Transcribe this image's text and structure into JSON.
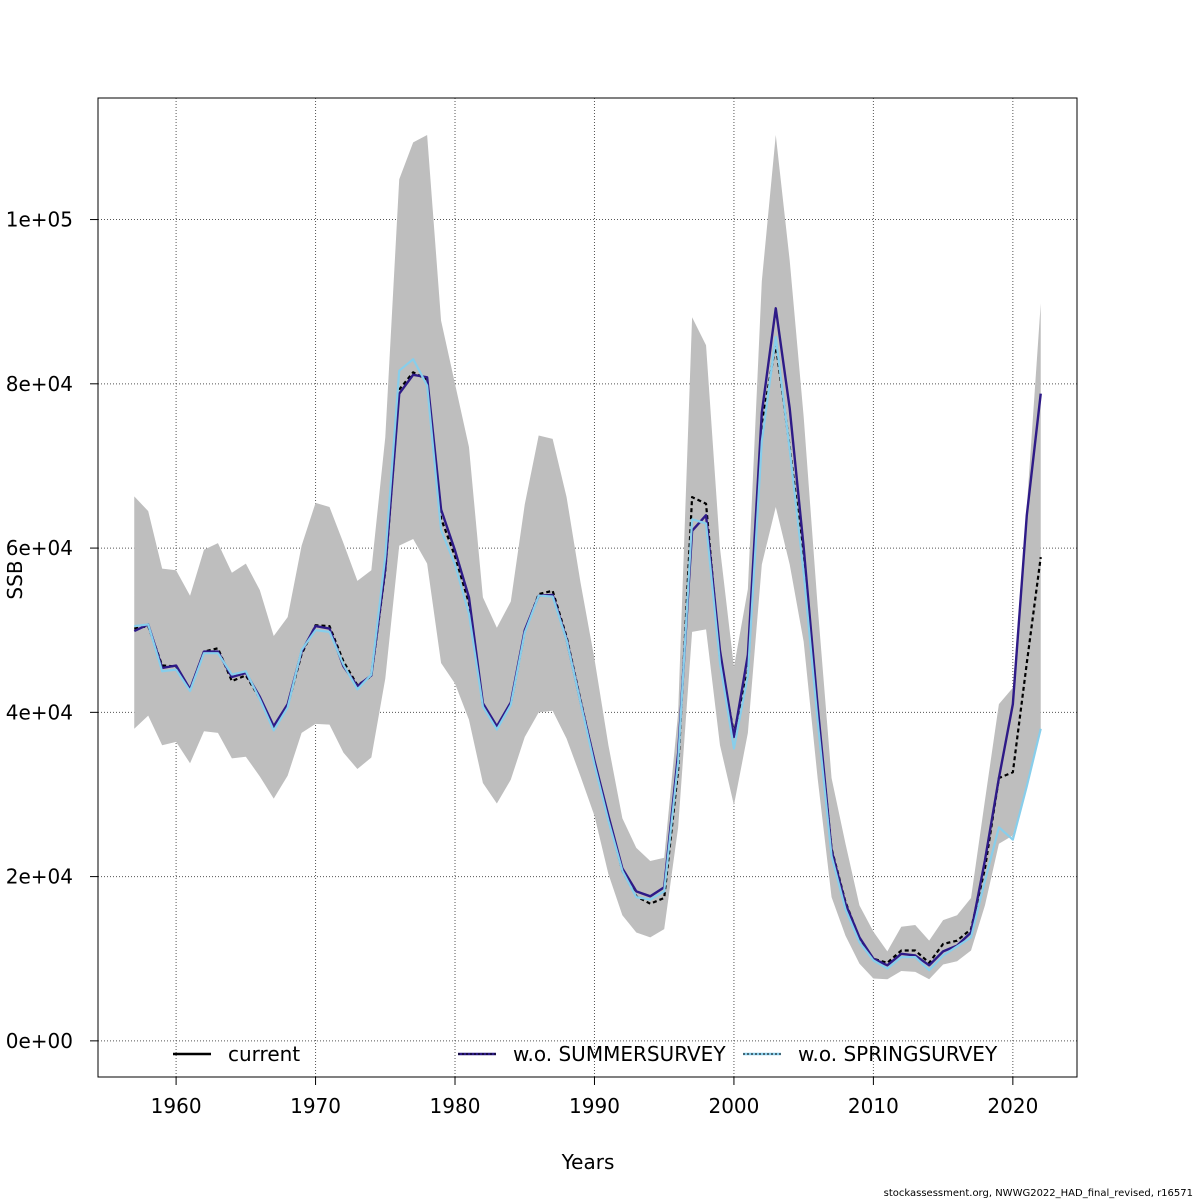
{
  "chart_data": {
    "type": "line",
    "xlabel": "Years",
    "ylabel": "SSB",
    "xlim": [
      1954.4,
      2024.6
    ],
    "ylim": [
      -4400,
      114800
    ],
    "x_ticks": [
      1960,
      1970,
      1980,
      1990,
      2000,
      2010,
      2020
    ],
    "x_tick_labels": [
      "1960",
      "1970",
      "1980",
      "1990",
      "2000",
      "2010",
      "2020"
    ],
    "y_ticks": [
      0,
      20000,
      40000,
      60000,
      80000,
      100000
    ],
    "y_tick_labels": [
      "0e+00",
      "2e+04",
      "4e+04",
      "6e+04",
      "8e+04",
      "1e+05"
    ],
    "grid": true,
    "legend_position": "bottom",
    "x": [
      1957,
      1958,
      1959,
      1960,
      1961,
      1962,
      1963,
      1964,
      1965,
      1966,
      1967,
      1968,
      1969,
      1970,
      1971,
      1972,
      1973,
      1974,
      1975,
      1976,
      1977,
      1978,
      1979,
      1980,
      1981,
      1982,
      1983,
      1984,
      1985,
      1986,
      1987,
      1988,
      1989,
      1990,
      1991,
      1992,
      1993,
      1994,
      1995,
      1996,
      1997,
      1998,
      1999,
      2000,
      2001,
      2002,
      2003,
      2004,
      2005,
      2006,
      2007,
      2008,
      2009,
      2010,
      2011,
      2012,
      2013,
      2014,
      2015,
      2016,
      2017,
      2018,
      2019,
      2020,
      2021,
      2022
    ],
    "band": {
      "upper": [
        66300,
        64500,
        57500,
        57300,
        54200,
        59800,
        60600,
        57000,
        58100,
        54900,
        49300,
        51600,
        60300,
        65500,
        65000,
        60600,
        56000,
        57300,
        73500,
        104900,
        109400,
        110300,
        87700,
        80000,
        72300,
        54000,
        50300,
        53500,
        65300,
        73700,
        73300,
        66200,
        55800,
        46500,
        36000,
        27100,
        23500,
        21900,
        22300,
        40000,
        88100,
        84700,
        60000,
        45500,
        55000,
        92500,
        110300,
        95000,
        76000,
        53000,
        32000,
        24000,
        16500,
        13300,
        10900,
        13900,
        14100,
        12200,
        14700,
        15300,
        17400,
        29300,
        41000,
        43000,
        65000,
        89800
      ],
      "lower": [
        38000,
        39600,
        36000,
        36400,
        33800,
        37700,
        37500,
        34400,
        34600,
        32200,
        29500,
        32300,
        37500,
        38600,
        38500,
        35100,
        33100,
        34500,
        44100,
        60300,
        61100,
        58100,
        46000,
        43500,
        39100,
        31400,
        28900,
        31800,
        37000,
        40000,
        40200,
        36800,
        32200,
        27400,
        20300,
        15300,
        13200,
        12600,
        13600,
        26000,
        49800,
        50100,
        36000,
        28700,
        37500,
        58000,
        65000,
        58000,
        48600,
        32000,
        17500,
        12800,
        9400,
        7600,
        7500,
        8500,
        8400,
        7500,
        9300,
        9700,
        11000,
        16500,
        24000,
        25000,
        31000,
        38000
      ]
    },
    "series": [
      {
        "name": "current",
        "color": "#000000",
        "dash": "4,3",
        "width": 2.2,
        "values": [
          50200,
          50500,
          45700,
          45600,
          42800,
          47400,
          47800,
          43800,
          44500,
          41700,
          38200,
          40800,
          47100,
          50600,
          50500,
          46200,
          43300,
          44400,
          57200,
          79300,
          81400,
          80500,
          63600,
          59000,
          53300,
          40800,
          38100,
          41000,
          49800,
          54400,
          54800,
          49200,
          41500,
          34000,
          27100,
          20700,
          17600,
          16700,
          17400,
          33000,
          66200,
          65400,
          46300,
          37500,
          45000,
          75200,
          84800,
          72300,
          58700,
          40200,
          23400,
          16900,
          12500,
          10000,
          9500,
          11000,
          11000,
          9500,
          11800,
          12200,
          13600,
          21000,
          32000,
          32700,
          46000,
          58900
        ]
      },
      {
        "name": "w.o. SUMMERSURVEY",
        "color": "#2e1a87",
        "dash": "",
        "width": 2.4,
        "values": [
          49900,
          50700,
          45400,
          45700,
          42800,
          47400,
          47400,
          44300,
          44800,
          41900,
          38300,
          41000,
          47400,
          50500,
          50200,
          45600,
          43200,
          44500,
          57500,
          78800,
          81100,
          80800,
          64700,
          59700,
          54000,
          41100,
          38300,
          41200,
          50000,
          54200,
          54300,
          48900,
          41300,
          34100,
          27400,
          21000,
          18200,
          17600,
          18700,
          35000,
          62100,
          64000,
          47500,
          37000,
          47000,
          76500,
          89200,
          77000,
          60100,
          40800,
          23200,
          16700,
          12600,
          10000,
          9200,
          10600,
          10400,
          9200,
          10900,
          11600,
          13200,
          22000,
          32000,
          41000,
          64000,
          78800
        ]
      },
      {
        "name": "w.o. SPRINGSURVEY",
        "color": "#87ceeb",
        "dash": "",
        "width": 2.2,
        "values": [
          50500,
          50700,
          45000,
          45200,
          42600,
          47200,
          47200,
          44600,
          45000,
          41600,
          37800,
          40600,
          47600,
          50000,
          49800,
          45800,
          42800,
          44600,
          59000,
          81600,
          83000,
          79800,
          62200,
          58000,
          52000,
          40700,
          37900,
          40900,
          49700,
          54200,
          54100,
          48800,
          41200,
          33600,
          26800,
          20700,
          17500,
          17200,
          18200,
          34000,
          63500,
          63000,
          46000,
          35600,
          44500,
          73000,
          85700,
          72000,
          57000,
          39000,
          22500,
          16000,
          12000,
          9800,
          8800,
          10200,
          10200,
          8600,
          10400,
          11500,
          12600,
          19500,
          26000,
          24500,
          31000,
          38000
        ]
      }
    ]
  },
  "credit": "stockassessment.org, NWWG2022_HAD_final_revised, r16571"
}
